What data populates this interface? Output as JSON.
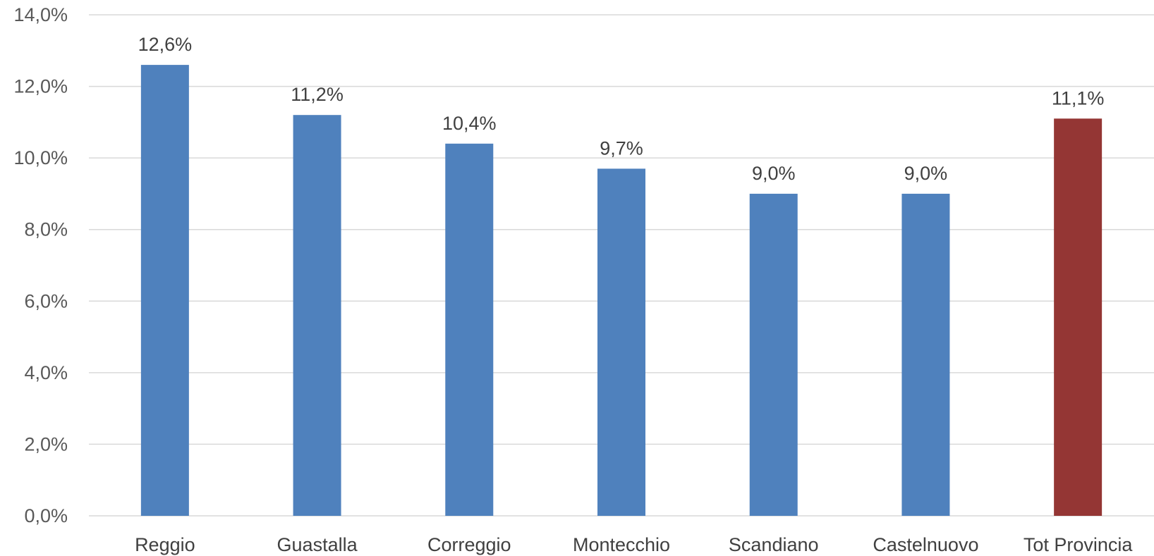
{
  "chart_data": {
    "type": "bar",
    "categories": [
      "Reggio",
      "Guastalla",
      "Correggio",
      "Montecchio",
      "Scandiano",
      "Castelnuovo",
      "Tot Provincia"
    ],
    "values": [
      12.6,
      11.2,
      10.4,
      9.7,
      9.0,
      9.0,
      11.1
    ],
    "data_labels": [
      "12,6%",
      "11,2%",
      "10,4%",
      "9,7%",
      "9,0%",
      "9,0%",
      "11,1%"
    ],
    "bar_colors": [
      "#4f81bd",
      "#4f81bd",
      "#4f81bd",
      "#4f81bd",
      "#4f81bd",
      "#4f81bd",
      "#943634"
    ],
    "ylim": [
      0,
      14
    ],
    "yticks": [
      0,
      2,
      4,
      6,
      8,
      10,
      12,
      14
    ],
    "ytick_labels": [
      "0,0%",
      "2,0%",
      "4,0%",
      "6,0%",
      "8,0%",
      "10,0%",
      "12,0%",
      "14,0%"
    ],
    "grid": true,
    "title": "",
    "xlabel": "",
    "ylabel": ""
  }
}
